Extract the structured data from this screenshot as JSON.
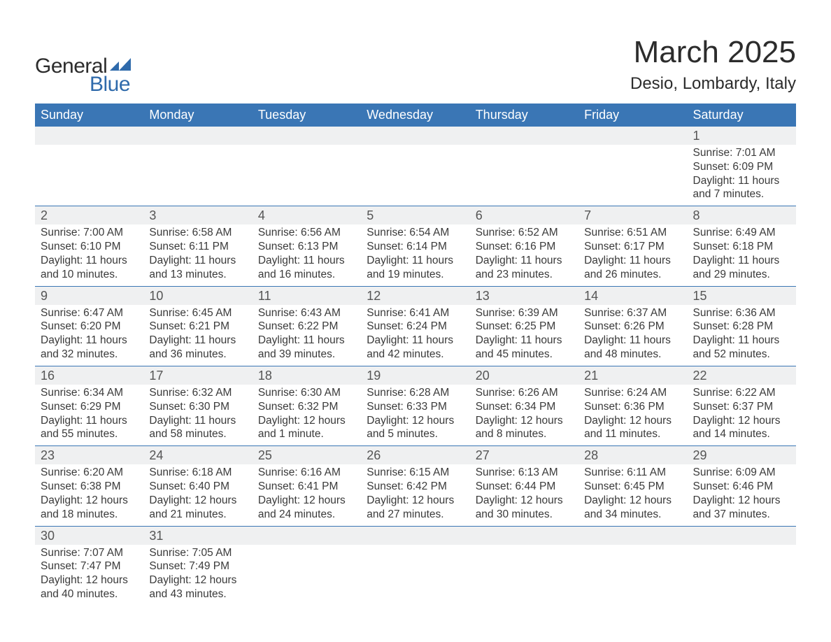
{
  "logo": {
    "text_general": "General",
    "text_blue": "Blue",
    "mark_color": "#2f6aab",
    "blue_color": "#2f6aab",
    "general_color": "#2c2c2c"
  },
  "title": {
    "month": "March 2025",
    "location": "Desio, Lombardy, Italy",
    "month_fontsize": 44,
    "location_fontsize": 24
  },
  "colors": {
    "header_bg": "#3a76b5",
    "header_text": "#ffffff",
    "daynum_bg": "#eff0f1",
    "daynum_text": "#555555",
    "body_text": "#3a3a3a",
    "week_separator": "#3a76b5",
    "background": "#ffffff"
  },
  "typography": {
    "font_family": "Arial, Helvetica, sans-serif",
    "header_fontsize": 18,
    "daynum_fontsize": 18,
    "detail_fontsize": 15.5
  },
  "calendar": {
    "columns": [
      "Sunday",
      "Monday",
      "Tuesday",
      "Wednesday",
      "Thursday",
      "Friday",
      "Saturday"
    ],
    "weeks": [
      [
        null,
        null,
        null,
        null,
        null,
        null,
        {
          "day": "1",
          "sunrise": "Sunrise: 7:01 AM",
          "sunset": "Sunset: 6:09 PM",
          "daylight": "Daylight: 11 hours and 7 minutes."
        }
      ],
      [
        {
          "day": "2",
          "sunrise": "Sunrise: 7:00 AM",
          "sunset": "Sunset: 6:10 PM",
          "daylight": "Daylight: 11 hours and 10 minutes."
        },
        {
          "day": "3",
          "sunrise": "Sunrise: 6:58 AM",
          "sunset": "Sunset: 6:11 PM",
          "daylight": "Daylight: 11 hours and 13 minutes."
        },
        {
          "day": "4",
          "sunrise": "Sunrise: 6:56 AM",
          "sunset": "Sunset: 6:13 PM",
          "daylight": "Daylight: 11 hours and 16 minutes."
        },
        {
          "day": "5",
          "sunrise": "Sunrise: 6:54 AM",
          "sunset": "Sunset: 6:14 PM",
          "daylight": "Daylight: 11 hours and 19 minutes."
        },
        {
          "day": "6",
          "sunrise": "Sunrise: 6:52 AM",
          "sunset": "Sunset: 6:16 PM",
          "daylight": "Daylight: 11 hours and 23 minutes."
        },
        {
          "day": "7",
          "sunrise": "Sunrise: 6:51 AM",
          "sunset": "Sunset: 6:17 PM",
          "daylight": "Daylight: 11 hours and 26 minutes."
        },
        {
          "day": "8",
          "sunrise": "Sunrise: 6:49 AM",
          "sunset": "Sunset: 6:18 PM",
          "daylight": "Daylight: 11 hours and 29 minutes."
        }
      ],
      [
        {
          "day": "9",
          "sunrise": "Sunrise: 6:47 AM",
          "sunset": "Sunset: 6:20 PM",
          "daylight": "Daylight: 11 hours and 32 minutes."
        },
        {
          "day": "10",
          "sunrise": "Sunrise: 6:45 AM",
          "sunset": "Sunset: 6:21 PM",
          "daylight": "Daylight: 11 hours and 36 minutes."
        },
        {
          "day": "11",
          "sunrise": "Sunrise: 6:43 AM",
          "sunset": "Sunset: 6:22 PM",
          "daylight": "Daylight: 11 hours and 39 minutes."
        },
        {
          "day": "12",
          "sunrise": "Sunrise: 6:41 AM",
          "sunset": "Sunset: 6:24 PM",
          "daylight": "Daylight: 11 hours and 42 minutes."
        },
        {
          "day": "13",
          "sunrise": "Sunrise: 6:39 AM",
          "sunset": "Sunset: 6:25 PM",
          "daylight": "Daylight: 11 hours and 45 minutes."
        },
        {
          "day": "14",
          "sunrise": "Sunrise: 6:37 AM",
          "sunset": "Sunset: 6:26 PM",
          "daylight": "Daylight: 11 hours and 48 minutes."
        },
        {
          "day": "15",
          "sunrise": "Sunrise: 6:36 AM",
          "sunset": "Sunset: 6:28 PM",
          "daylight": "Daylight: 11 hours and 52 minutes."
        }
      ],
      [
        {
          "day": "16",
          "sunrise": "Sunrise: 6:34 AM",
          "sunset": "Sunset: 6:29 PM",
          "daylight": "Daylight: 11 hours and 55 minutes."
        },
        {
          "day": "17",
          "sunrise": "Sunrise: 6:32 AM",
          "sunset": "Sunset: 6:30 PM",
          "daylight": "Daylight: 11 hours and 58 minutes."
        },
        {
          "day": "18",
          "sunrise": "Sunrise: 6:30 AM",
          "sunset": "Sunset: 6:32 PM",
          "daylight": "Daylight: 12 hours and 1 minute."
        },
        {
          "day": "19",
          "sunrise": "Sunrise: 6:28 AM",
          "sunset": "Sunset: 6:33 PM",
          "daylight": "Daylight: 12 hours and 5 minutes."
        },
        {
          "day": "20",
          "sunrise": "Sunrise: 6:26 AM",
          "sunset": "Sunset: 6:34 PM",
          "daylight": "Daylight: 12 hours and 8 minutes."
        },
        {
          "day": "21",
          "sunrise": "Sunrise: 6:24 AM",
          "sunset": "Sunset: 6:36 PM",
          "daylight": "Daylight: 12 hours and 11 minutes."
        },
        {
          "day": "22",
          "sunrise": "Sunrise: 6:22 AM",
          "sunset": "Sunset: 6:37 PM",
          "daylight": "Daylight: 12 hours and 14 minutes."
        }
      ],
      [
        {
          "day": "23",
          "sunrise": "Sunrise: 6:20 AM",
          "sunset": "Sunset: 6:38 PM",
          "daylight": "Daylight: 12 hours and 18 minutes."
        },
        {
          "day": "24",
          "sunrise": "Sunrise: 6:18 AM",
          "sunset": "Sunset: 6:40 PM",
          "daylight": "Daylight: 12 hours and 21 minutes."
        },
        {
          "day": "25",
          "sunrise": "Sunrise: 6:16 AM",
          "sunset": "Sunset: 6:41 PM",
          "daylight": "Daylight: 12 hours and 24 minutes."
        },
        {
          "day": "26",
          "sunrise": "Sunrise: 6:15 AM",
          "sunset": "Sunset: 6:42 PM",
          "daylight": "Daylight: 12 hours and 27 minutes."
        },
        {
          "day": "27",
          "sunrise": "Sunrise: 6:13 AM",
          "sunset": "Sunset: 6:44 PM",
          "daylight": "Daylight: 12 hours and 30 minutes."
        },
        {
          "day": "28",
          "sunrise": "Sunrise: 6:11 AM",
          "sunset": "Sunset: 6:45 PM",
          "daylight": "Daylight: 12 hours and 34 minutes."
        },
        {
          "day": "29",
          "sunrise": "Sunrise: 6:09 AM",
          "sunset": "Sunset: 6:46 PM",
          "daylight": "Daylight: 12 hours and 37 minutes."
        }
      ],
      [
        {
          "day": "30",
          "sunrise": "Sunrise: 7:07 AM",
          "sunset": "Sunset: 7:47 PM",
          "daylight": "Daylight: 12 hours and 40 minutes."
        },
        {
          "day": "31",
          "sunrise": "Sunrise: 7:05 AM",
          "sunset": "Sunset: 7:49 PM",
          "daylight": "Daylight: 12 hours and 43 minutes."
        },
        null,
        null,
        null,
        null,
        null
      ]
    ]
  }
}
